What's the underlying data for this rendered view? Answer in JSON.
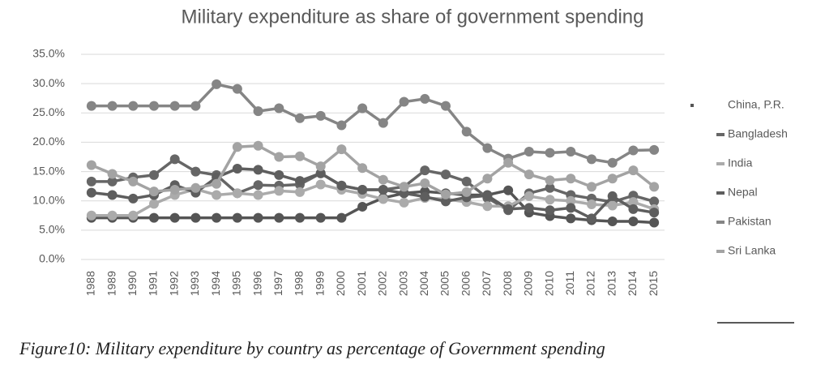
{
  "chart_data": {
    "type": "line",
    "title": "Military expenditure as share of government spending",
    "caption": "Figure10: Military expenditure by country as percentage of Government spending",
    "categories": [
      "1988",
      "1989",
      "1990",
      "1991",
      "1992",
      "1993",
      "1994",
      "1995",
      "1996",
      "1997",
      "1998",
      "1999",
      "2000",
      "2001",
      "2002",
      "2003",
      "2004",
      "2005",
      "2006",
      "2007",
      "2008",
      "2009",
      "2010",
      "2011",
      "2012",
      "2013",
      "2014",
      "2015"
    ],
    "series": [
      {
        "name": "China, P.R.",
        "color": "#555555",
        "values": [
          7.1,
          7.1,
          7.1,
          7.1,
          7.1,
          7.1,
          7.1,
          7.1,
          7.1,
          7.1,
          7.1,
          7.1,
          7.1,
          9.0,
          10.5,
          11.3,
          11.6,
          11.3,
          11.0,
          11.0,
          11.8,
          8.0,
          7.4,
          7.0,
          6.7,
          6.5,
          6.5,
          6.3
        ]
      },
      {
        "name": "Bangladesh",
        "color": "#666666",
        "values": [
          13.3,
          13.3,
          14.0,
          14.4,
          17.1,
          15.0,
          14.4,
          11.3,
          12.7,
          12.6,
          12.8,
          14.7,
          12.6,
          11.9,
          11.9,
          12.4,
          15.2,
          14.5,
          13.3,
          10.5,
          8.4,
          11.3,
          12.2,
          11.0,
          10.4,
          9.8,
          10.9,
          9.9
        ]
      },
      {
        "name": "India",
        "color": "#ababab",
        "values": [
          7.5,
          7.5,
          7.5,
          9.5,
          11.0,
          12.0,
          11.0,
          11.3,
          11.0,
          11.7,
          11.5,
          12.8,
          11.9,
          11.2,
          10.3,
          9.7,
          10.5,
          10.3,
          9.8,
          9.1,
          9.1,
          10.8,
          10.2,
          10.0,
          9.4,
          9.2,
          9.8,
          8.6
        ]
      },
      {
        "name": "Nepal",
        "color": "#5e5e5e",
        "values": [
          11.4,
          11.0,
          10.4,
          11.0,
          12.7,
          11.4,
          14.0,
          15.5,
          15.3,
          14.4,
          13.4,
          14.7,
          12.6,
          11.9,
          11.9,
          11.3,
          10.7,
          9.9,
          10.6,
          10.9,
          8.6,
          8.8,
          8.4,
          8.8,
          7.0,
          10.8,
          8.6,
          8.0
        ]
      },
      {
        "name": "Pakistan",
        "color": "#858585",
        "values": [
          26.2,
          26.2,
          26.2,
          26.2,
          26.2,
          26.2,
          29.9,
          29.1,
          25.3,
          25.8,
          24.1,
          24.5,
          22.9,
          25.8,
          23.3,
          26.9,
          27.4,
          26.2,
          21.8,
          19.0,
          17.2,
          18.4,
          18.2,
          18.4,
          17.1,
          16.5,
          18.6,
          18.7
        ]
      },
      {
        "name": "Sri Lanka",
        "color": "#a3a3a3",
        "values": [
          16.1,
          14.6,
          13.3,
          11.6,
          11.9,
          12.2,
          12.9,
          19.2,
          19.4,
          17.5,
          17.6,
          15.9,
          18.8,
          15.6,
          13.6,
          12.4,
          13.0,
          11.1,
          11.5,
          13.8,
          16.5,
          14.5,
          13.5,
          13.8,
          12.4,
          13.8,
          15.2,
          12.4
        ]
      }
    ],
    "ylim": [
      0,
      35
    ],
    "yticks": [
      {
        "value": 0,
        "label": "0.0%"
      },
      {
        "value": 5,
        "label": "5.0%"
      },
      {
        "value": 10,
        "label": "10.0%"
      },
      {
        "value": 15,
        "label": "15.0%"
      },
      {
        "value": 20,
        "label": "20.0%"
      },
      {
        "value": 25,
        "label": "25.0%"
      },
      {
        "value": 30,
        "label": "30.0%"
      },
      {
        "value": 35,
        "label": "35.0%"
      }
    ],
    "grid": true,
    "legend": "right"
  }
}
